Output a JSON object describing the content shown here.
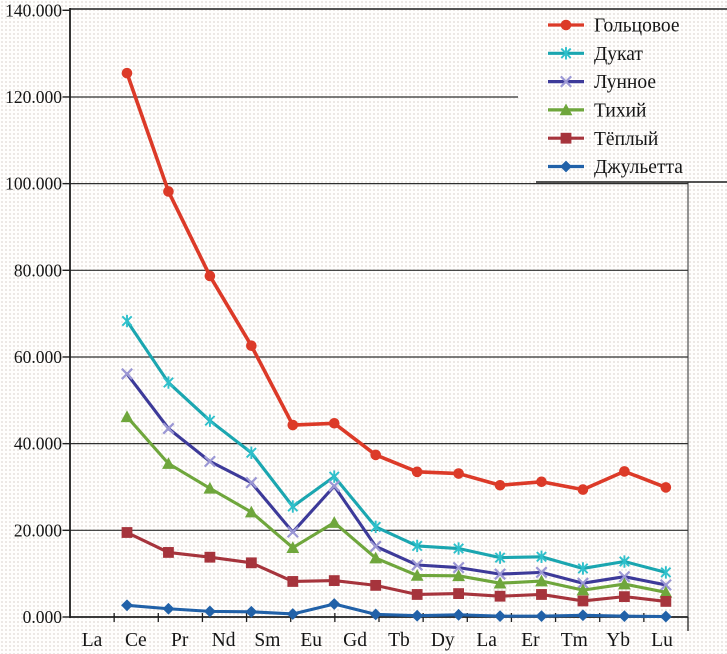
{
  "chart_data": {
    "type": "line",
    "title": "",
    "xlabel": "",
    "ylabel": "",
    "categories": [
      "La",
      "Ce",
      "Pr",
      "Nd",
      "Sm",
      "Eu",
      "Gd",
      "Tb",
      "Dy",
      "La",
      "Er",
      "Tm",
      "Yb",
      "Lu"
    ],
    "y_tick_labels": [
      "0.000",
      "20.000",
      "40.000",
      "60.000",
      "80.000",
      "100.000",
      "120.000",
      "140.000"
    ],
    "ylim": [
      0,
      140
    ],
    "grid": true,
    "legend_position": "top-right",
    "axis_color": "#2a2a2a",
    "series": [
      {
        "name": "Гольцовое",
        "marker": "circle",
        "color": "#DC3A28",
        "values": [
          125.5,
          98.2,
          78.7,
          62.6,
          44.3,
          44.7,
          37.4,
          33.5,
          33.1,
          30.4,
          31.2,
          29.4,
          33.6,
          29.9
        ]
      },
      {
        "name": "Дукат",
        "marker": "star",
        "color": "#1BA6B0",
        "marker_color": "#2FC0CB",
        "values": [
          68.3,
          54.1,
          45.3,
          37.9,
          25.5,
          32.4,
          20.8,
          16.4,
          15.8,
          13.7,
          13.9,
          11.2,
          12.8,
          10.3
        ]
      },
      {
        "name": "Лунное",
        "marker": "x",
        "color": "#3D3A99",
        "marker_color": "#9B97D4",
        "values": [
          56.1,
          43.5,
          35.9,
          31.0,
          19.6,
          30.2,
          16.3,
          12.0,
          11.4,
          9.9,
          10.3,
          7.8,
          9.3,
          7.4
        ]
      },
      {
        "name": "Тихий",
        "marker": "triangle",
        "color": "#6FA63C",
        "values": [
          46.2,
          35.4,
          29.7,
          24.2,
          16.0,
          21.8,
          13.6,
          9.6,
          9.5,
          7.8,
          8.3,
          6.2,
          7.6,
          5.7
        ]
      },
      {
        "name": "Тёплый",
        "marker": "square",
        "color": "#A6343C",
        "values": [
          19.5,
          14.9,
          13.8,
          12.5,
          8.2,
          8.4,
          7.3,
          5.2,
          5.4,
          4.8,
          5.2,
          3.7,
          4.7,
          3.6
        ]
      },
      {
        "name": "Джульетта",
        "marker": "diamond",
        "color": "#2161A8",
        "values": [
          2.7,
          1.9,
          1.3,
          1.2,
          0.7,
          3.0,
          0.6,
          0.3,
          0.5,
          0.2,
          0.2,
          0.4,
          0.2,
          0.1
        ]
      }
    ]
  }
}
